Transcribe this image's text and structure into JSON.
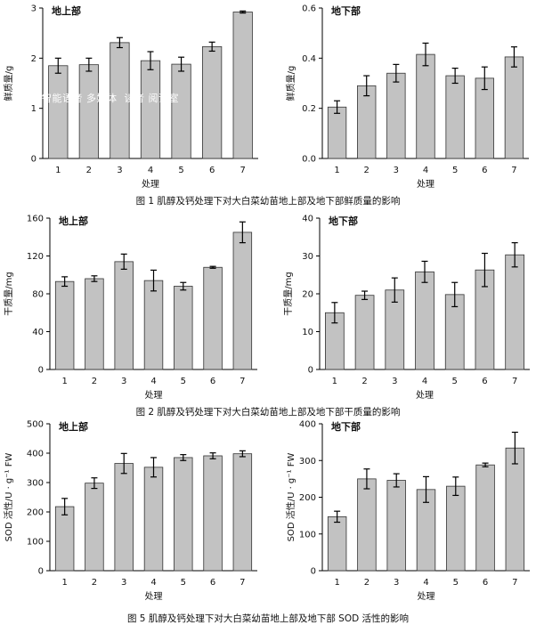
{
  "watermark": "智能语音 多媒体  读者 阅读室",
  "captions": [
    "图 1   肌醇及钙处理下对大白菜幼苗地上部及地下部鲜质量的影响",
    "图 2   肌醇及钙处理下对大白菜幼苗地上部及地下部干质量的影响",
    "图 5   肌醇及钙处理下对大白菜幼苗地上部及地下部 SOD 活性的影响"
  ],
  "chart_data": [
    {
      "type": "bar",
      "title": "地上部",
      "xlabel": "处理",
      "ylabel": "鲜质量/g",
      "categories": [
        "1",
        "2",
        "3",
        "4",
        "5",
        "6",
        "7"
      ],
      "values": [
        1.85,
        1.87,
        2.31,
        1.95,
        1.88,
        2.23,
        2.92
      ],
      "errors": [
        0.15,
        0.13,
        0.1,
        0.18,
        0.14,
        0.09,
        0.02
      ],
      "ylim": [
        0,
        3
      ],
      "yticks": [
        "0",
        "1",
        "2",
        "3"
      ],
      "grid": false
    },
    {
      "type": "bar",
      "title": "地下部",
      "xlabel": "处理",
      "ylabel": "鲜质量/g",
      "categories": [
        "1",
        "2",
        "3",
        "4",
        "5",
        "6",
        "7"
      ],
      "values": [
        0.205,
        0.29,
        0.34,
        0.415,
        0.33,
        0.32,
        0.405
      ],
      "errors": [
        0.025,
        0.04,
        0.035,
        0.045,
        0.03,
        0.045,
        0.04
      ],
      "ylim": [
        0,
        0.6
      ],
      "yticks": [
        "0.0",
        "0.2",
        "0.4",
        "0.6"
      ],
      "grid": false
    },
    {
      "type": "bar",
      "title": "地上部",
      "xlabel": "处理",
      "ylabel": "干质量/mg",
      "categories": [
        "1",
        "2",
        "3",
        "4",
        "5",
        "6",
        "7"
      ],
      "values": [
        93,
        96,
        114,
        94,
        88,
        108,
        145
      ],
      "errors": [
        5,
        3,
        8,
        11,
        4,
        1,
        11
      ],
      "ylim": [
        0,
        160
      ],
      "yticks": [
        "0",
        "40",
        "80",
        "120",
        "160"
      ],
      "grid": false
    },
    {
      "type": "bar",
      "title": "地下部",
      "xlabel": "处理",
      "ylabel": "干质量/mg",
      "categories": [
        "1",
        "2",
        "3",
        "4",
        "5",
        "6",
        "7"
      ],
      "values": [
        15,
        19.6,
        21,
        25.8,
        19.8,
        26.3,
        30.3
      ],
      "errors": [
        2.7,
        1.1,
        3.2,
        2.8,
        3.2,
        4.4,
        3.2
      ],
      "ylim": [
        0,
        40
      ],
      "yticks": [
        "0",
        "10",
        "20",
        "30",
        "40"
      ],
      "grid": false
    },
    {
      "type": "bar",
      "title": "地上部",
      "xlabel": "处理",
      "ylabel": "SOD 活性/U · g⁻¹ FW",
      "categories": [
        "1",
        "2",
        "3",
        "4",
        "5",
        "6",
        "7"
      ],
      "values": [
        218,
        298,
        365,
        352,
        385,
        391,
        398
      ],
      "errors": [
        28,
        18,
        34,
        33,
        10,
        10,
        10
      ],
      "ylim": [
        0,
        500
      ],
      "yticks": [
        "0",
        "100",
        "200",
        "300",
        "400",
        "500"
      ],
      "grid": false
    },
    {
      "type": "bar",
      "title": "地下部",
      "xlabel": "处理",
      "ylabel": "SOD 活性/U · g⁻¹ FW",
      "categories": [
        "1",
        "2",
        "3",
        "4",
        "5",
        "6",
        "7"
      ],
      "values": [
        147,
        250,
        246,
        221,
        230,
        288,
        334
      ],
      "errors": [
        15,
        27,
        18,
        35,
        25,
        5,
        43
      ],
      "ylim": [
        0,
        400
      ],
      "yticks": [
        "0",
        "100",
        "200",
        "300",
        "400"
      ],
      "grid": false
    }
  ]
}
